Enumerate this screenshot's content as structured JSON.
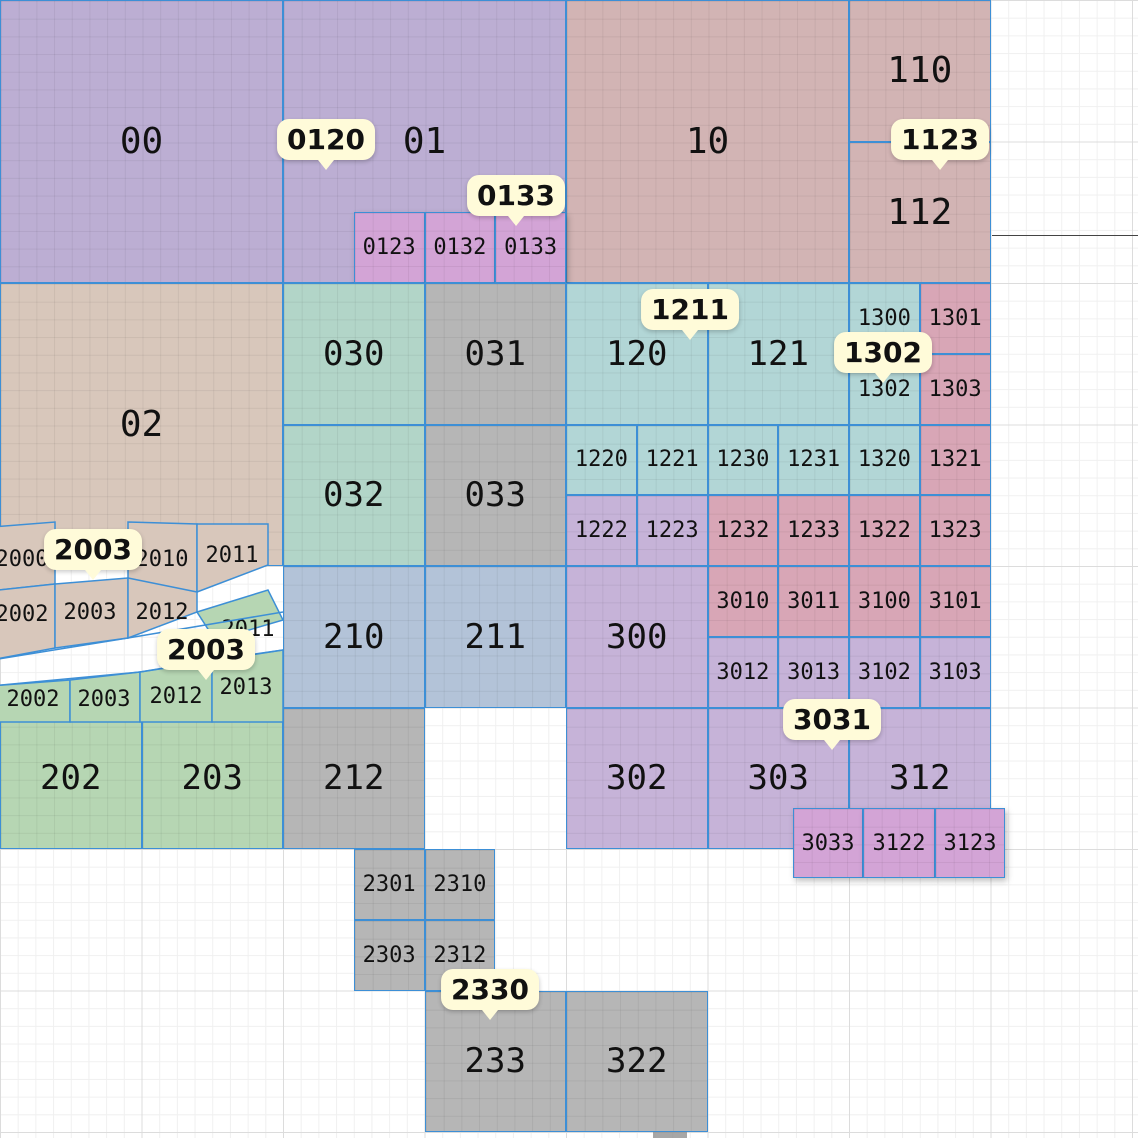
{
  "colors": {
    "purple": "#bcaed3",
    "rose": "#d2b4b4",
    "tan": "#d8c7bb",
    "teal": "#b2d5c8",
    "gray": "#b6b6b6",
    "bluegray": "#b3c3d8",
    "cyan": "#b2d6d6",
    "pink": "#d8a6b6",
    "magenta": "#d3a4d6",
    "violet": "#c6b3d8",
    "green": "#b6d6b3",
    "grid_line": "#3d8fd6",
    "pin_bg": "#fffbd9",
    "road": "#8a8a8a"
  },
  "tiles": [
    {
      "label": "00",
      "color": "purple"
    },
    {
      "label": "01",
      "color": "purple"
    },
    {
      "label": "10",
      "color": "rose"
    },
    {
      "label": "110",
      "color": "rose"
    },
    {
      "label": "112",
      "color": "rose"
    },
    {
      "label": "0123",
      "color": "magenta"
    },
    {
      "label": "0132",
      "color": "magenta"
    },
    {
      "label": "0133",
      "color": "magenta"
    },
    {
      "label": "02",
      "color": "tan"
    },
    {
      "label": "030",
      "color": "teal"
    },
    {
      "label": "031",
      "color": "gray"
    },
    {
      "label": "032",
      "color": "teal"
    },
    {
      "label": "033",
      "color": "gray"
    },
    {
      "label": "120",
      "color": "cyan"
    },
    {
      "label": "121",
      "color": "cyan"
    },
    {
      "label": "1300",
      "color": "cyan"
    },
    {
      "label": "1301",
      "color": "pink"
    },
    {
      "label": "1302",
      "color": "cyan"
    },
    {
      "label": "1303",
      "color": "pink"
    },
    {
      "label": "1220",
      "color": "cyan"
    },
    {
      "label": "1221",
      "color": "cyan"
    },
    {
      "label": "1230",
      "color": "cyan"
    },
    {
      "label": "1231",
      "color": "cyan"
    },
    {
      "label": "1320",
      "color": "cyan"
    },
    {
      "label": "1321",
      "color": "pink"
    },
    {
      "label": "1222",
      "color": "violet"
    },
    {
      "label": "1223",
      "color": "violet"
    },
    {
      "label": "1232",
      "color": "pink"
    },
    {
      "label": "1233",
      "color": "pink"
    },
    {
      "label": "1322",
      "color": "pink"
    },
    {
      "label": "1323",
      "color": "pink"
    },
    {
      "label": "210",
      "color": "bluegray"
    },
    {
      "label": "211",
      "color": "bluegray"
    },
    {
      "label": "300",
      "color": "violet"
    },
    {
      "label": "3010",
      "color": "pink"
    },
    {
      "label": "3011",
      "color": "pink"
    },
    {
      "label": "3100",
      "color": "pink"
    },
    {
      "label": "3101",
      "color": "pink"
    },
    {
      "label": "3012",
      "color": "violet"
    },
    {
      "label": "3013",
      "color": "violet"
    },
    {
      "label": "3102",
      "color": "violet"
    },
    {
      "label": "3103",
      "color": "violet"
    },
    {
      "label": "202",
      "color": "green"
    },
    {
      "label": "203",
      "color": "green"
    },
    {
      "label": "212",
      "color": "gray"
    },
    {
      "label": "302",
      "color": "violet"
    },
    {
      "label": "303",
      "color": "violet"
    },
    {
      "label": "312",
      "color": "violet"
    },
    {
      "label": "3033",
      "color": "magenta"
    },
    {
      "label": "3122",
      "color": "magenta"
    },
    {
      "label": "3123",
      "color": "magenta"
    },
    {
      "label": "2301",
      "color": "gray"
    },
    {
      "label": "2310",
      "color": "gray"
    },
    {
      "label": "2303",
      "color": "gray"
    },
    {
      "label": "2312",
      "color": "gray"
    },
    {
      "label": "233",
      "color": "gray"
    },
    {
      "label": "322",
      "color": "gray"
    }
  ],
  "skewed_tiles": [
    {
      "label": "2000",
      "color": "tan"
    },
    {
      "label": "2010",
      "color": "tan"
    },
    {
      "label": "2011",
      "color": "tan"
    },
    {
      "label": "2002",
      "color": "tan"
    },
    {
      "label": "2003",
      "color": "tan"
    },
    {
      "label": "2012",
      "color": "tan"
    },
    {
      "label": "2011",
      "color": "green"
    },
    {
      "label": "2002",
      "color": "green"
    },
    {
      "label": "2003",
      "color": "green"
    },
    {
      "label": "2012",
      "color": "green"
    },
    {
      "label": "2013",
      "color": "green"
    }
  ],
  "pins": [
    {
      "label": "0120"
    },
    {
      "label": "0133"
    },
    {
      "label": "1123"
    },
    {
      "label": "1211"
    },
    {
      "label": "1302"
    },
    {
      "label": "2003"
    },
    {
      "label": "2003"
    },
    {
      "label": "3031"
    },
    {
      "label": "2330"
    }
  ]
}
